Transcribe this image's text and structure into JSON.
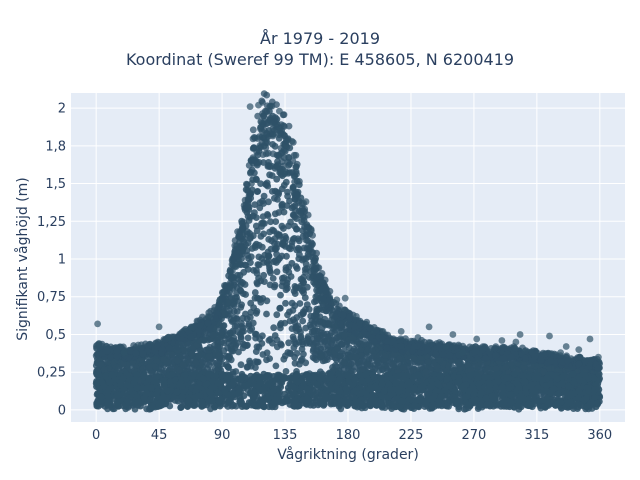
{
  "chart_data": {
    "type": "scatter",
    "title_lines": [
      "År 1979 - 2019",
      "Koordinat (Sweref 99 TM): E 458605, N 6200419"
    ],
    "xlabel": "Vågriktning (grader)",
    "ylabel": "Signifikant våghöjd (m)",
    "xlim": [
      -18,
      378
    ],
    "ylim": [
      -0.08,
      2.1
    ],
    "xticks": [
      0,
      45,
      90,
      135,
      180,
      225,
      270,
      315,
      360
    ],
    "xtick_labels": [
      "0",
      "45",
      "90",
      "135",
      "180",
      "225",
      "270",
      "315",
      "360"
    ],
    "yticks": [
      0,
      0.25,
      0.5,
      0.75,
      1,
      1.25,
      1.5,
      1.75,
      2
    ],
    "ytick_labels": [
      "0",
      "0,25",
      "0,5",
      "0,75",
      "1",
      "1,25",
      "1,5",
      "1,8",
      "2"
    ],
    "grid": true,
    "marker_color": "#2f5268",
    "background_color": "#e5ecf6",
    "envelope": {
      "direction": [
        0,
        20,
        45,
        60,
        75,
        85,
        95,
        105,
        112,
        120,
        130,
        140,
        150,
        160,
        170,
        180,
        195,
        210,
        225,
        250,
        270,
        300,
        330,
        360
      ],
      "upper_hs": [
        0.42,
        0.4,
        0.43,
        0.5,
        0.58,
        0.65,
        0.9,
        1.3,
        1.8,
        2.0,
        1.95,
        1.75,
        1.3,
        0.9,
        0.7,
        0.62,
        0.55,
        0.47,
        0.45,
        0.42,
        0.4,
        0.4,
        0.35,
        0.32
      ]
    },
    "outliers": [
      {
        "x": 1,
        "y": 0.57
      },
      {
        "x": 2,
        "y": 0.44
      },
      {
        "x": 45,
        "y": 0.55
      },
      {
        "x": 80,
        "y": 0.62
      },
      {
        "x": 88,
        "y": 0.72
      },
      {
        "x": 100,
        "y": 0.95
      },
      {
        "x": 172,
        "y": 0.73
      },
      {
        "x": 178,
        "y": 0.74
      },
      {
        "x": 186,
        "y": 0.62
      },
      {
        "x": 218,
        "y": 0.52
      },
      {
        "x": 238,
        "y": 0.55
      },
      {
        "x": 255,
        "y": 0.5
      },
      {
        "x": 272,
        "y": 0.47
      },
      {
        "x": 290,
        "y": 0.46
      },
      {
        "x": 303,
        "y": 0.5
      },
      {
        "x": 324,
        "y": 0.49
      },
      {
        "x": 336,
        "y": 0.42
      },
      {
        "x": 345,
        "y": 0.4
      },
      {
        "x": 353,
        "y": 0.47
      },
      {
        "x": 359,
        "y": 0.35
      },
      {
        "x": 332,
        "y": 0.38
      },
      {
        "x": 300,
        "y": 0.45
      },
      {
        "x": 250,
        "y": 0.42
      },
      {
        "x": 262,
        "y": 0.38
      },
      {
        "x": 20,
        "y": 0.38
      },
      {
        "x": 30,
        "y": 0.43
      },
      {
        "x": 52,
        "y": 0.48
      },
      {
        "x": 68,
        "y": 0.55
      },
      {
        "x": 205,
        "y": 0.52
      },
      {
        "x": 230,
        "y": 0.48
      },
      {
        "x": 110,
        "y": 2.01
      },
      {
        "x": 116,
        "y": 2.02
      },
      {
        "x": 124,
        "y": 2.01
      },
      {
        "x": 131,
        "y": 1.98
      },
      {
        "x": 140,
        "y": 1.78
      },
      {
        "x": 150,
        "y": 1.38
      }
    ]
  }
}
